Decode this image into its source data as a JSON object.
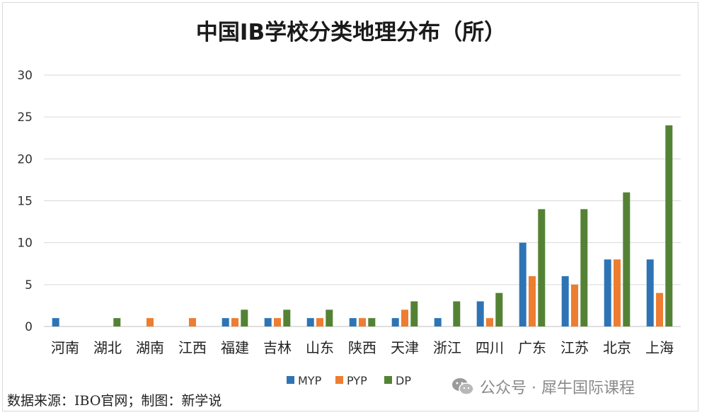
{
  "chart_data": {
    "type": "bar",
    "title": "中国IB学校分类地理分布（所）",
    "categories": [
      "河南",
      "湖北",
      "湖南",
      "江西",
      "福建",
      "吉林",
      "山东",
      "陕西",
      "天津",
      "浙江",
      "四川",
      "广东",
      "江苏",
      "北京",
      "上海"
    ],
    "series": [
      {
        "name": "MYP",
        "color": "#2e74b5",
        "values": [
          1,
          0,
          0,
          0,
          1,
          1,
          1,
          1,
          1,
          1,
          3,
          10,
          6,
          8,
          8
        ]
      },
      {
        "name": "PYP",
        "color": "#ed7d31",
        "values": [
          0,
          0,
          1,
          1,
          1,
          1,
          1,
          1,
          2,
          0,
          1,
          6,
          5,
          8,
          4
        ]
      },
      {
        "name": "DP",
        "color": "#548235",
        "values": [
          0,
          1,
          0,
          0,
          2,
          2,
          2,
          1,
          3,
          3,
          4,
          14,
          14,
          16,
          24
        ]
      }
    ],
    "ylim": [
      0,
      30
    ],
    "yticks": [
      0,
      5,
      10,
      15,
      20,
      25,
      30
    ],
    "grid": true,
    "legend": "bottom"
  },
  "source_text": "数据来源：IBO官网；制图：新学说",
  "watermark": {
    "icon": "wechat-icon",
    "text": "公众号 · 犀牛国际课程"
  }
}
